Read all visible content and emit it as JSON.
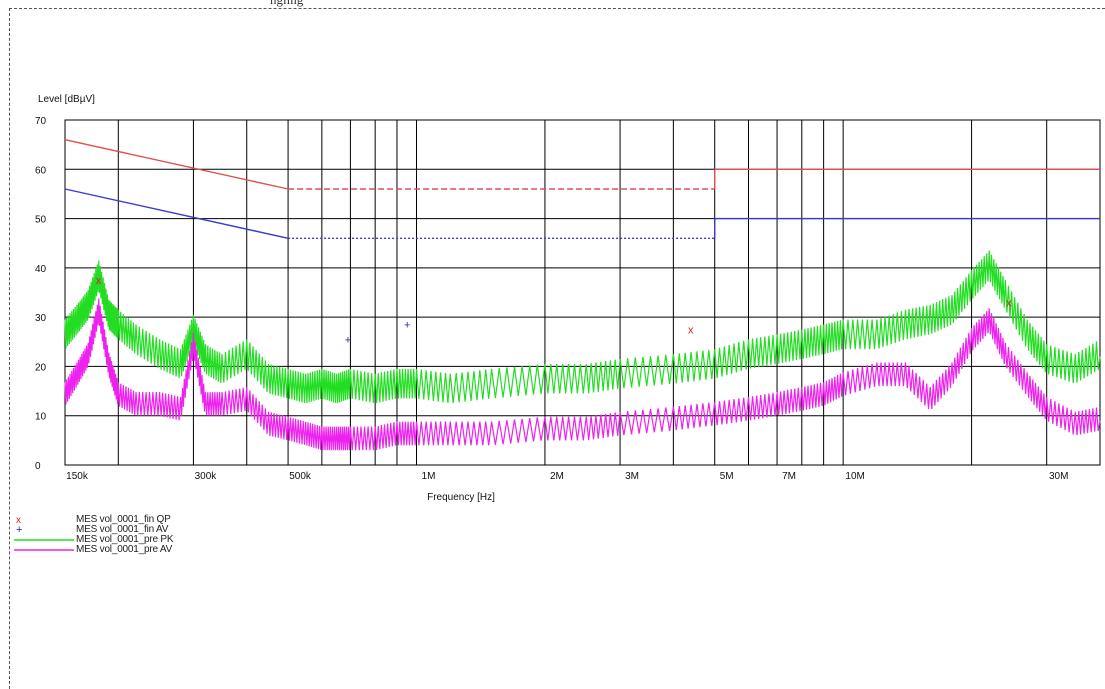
{
  "header_fragment": "ngling",
  "chart_data": {
    "type": "line",
    "title": "",
    "ylabel": "Level [dBµV]",
    "xlabel": "Frequency [Hz]",
    "x_scale": "log",
    "xlim": [
      150000,
      40000000
    ],
    "ylim": [
      0,
      70
    ],
    "grid": true,
    "y_ticks": [
      0,
      10,
      20,
      30,
      40,
      50,
      60,
      70
    ],
    "x_ticks": [
      {
        "value": 150000,
        "label": "150k"
      },
      {
        "value": 300000,
        "label": "300k"
      },
      {
        "value": 500000,
        "label": "500k"
      },
      {
        "value": 1000000,
        "label": "1M"
      },
      {
        "value": 2000000,
        "label": "2M"
      },
      {
        "value": 3000000,
        "label": "3M"
      },
      {
        "value": 5000000,
        "label": "5M"
      },
      {
        "value": 7000000,
        "label": "7M"
      },
      {
        "value": 10000000,
        "label": "10M"
      },
      {
        "value": 30000000,
        "label": "30M"
      }
    ],
    "x_minor_grid": [
      200000,
      400000,
      600000,
      700000,
      800000,
      900000,
      4000000,
      6000000,
      8000000,
      9000000,
      20000000
    ],
    "limit_lines": [
      {
        "color": "#e05050",
        "segments": [
          {
            "x": [
              150000,
              500000
            ],
            "y": [
              66,
              56
            ],
            "style": "solid"
          },
          {
            "x": [
              500000,
              5000000
            ],
            "y": [
              56,
              56
            ],
            "style": "dashed"
          },
          {
            "x": [
              5000000,
              5000000
            ],
            "y": [
              56,
              60
            ],
            "style": "solid"
          },
          {
            "x": [
              5000000,
              40000000
            ],
            "y": [
              60,
              60
            ],
            "style": "solid"
          }
        ]
      },
      {
        "color": "#3a3ad0",
        "segments": [
          {
            "x": [
              150000,
              500000
            ],
            "y": [
              56,
              46
            ],
            "style": "solid"
          },
          {
            "x": [
              500000,
              5000000
            ],
            "y": [
              46,
              46
            ],
            "style": "dotted"
          },
          {
            "x": [
              5000000,
              5000000
            ],
            "y": [
              46,
              50
            ],
            "style": "solid"
          },
          {
            "x": [
              5000000,
              40000000
            ],
            "y": [
              50,
              50
            ],
            "style": "solid"
          }
        ]
      }
    ],
    "series": [
      {
        "name": "MES  vol_0001_pre PK",
        "color": "#22dd22",
        "line": true,
        "x": [
          150000,
          160000,
          170000,
          180000,
          190000,
          200000,
          220000,
          250000,
          280000,
          300000,
          320000,
          350000,
          400000,
          450000,
          500000,
          550000,
          600000,
          650000,
          700000,
          800000,
          900000,
          1000000,
          1200000,
          1500000,
          2000000,
          2500000,
          3000000,
          4000000,
          5000000,
          6000000,
          7000000,
          8000000,
          9000000,
          10000000,
          12000000,
          14000000,
          16000000,
          18000000,
          20000000,
          22000000,
          24000000,
          27000000,
          30000000,
          35000000,
          40000000
        ],
        "y": [
          26,
          29,
          32,
          38,
          30,
          28,
          25,
          22,
          20,
          27,
          21,
          19,
          22,
          17,
          16,
          15,
          16,
          15,
          16,
          15,
          16,
          16,
          15,
          16,
          17,
          17,
          18,
          19,
          20,
          22,
          23,
          24,
          25,
          26,
          26,
          28,
          29,
          31,
          36,
          40,
          34,
          26,
          21,
          19,
          22
        ]
      },
      {
        "name": "MES  vol_0001_pre AV",
        "color": "#ee22ee",
        "line": true,
        "x": [
          150000,
          160000,
          170000,
          180000,
          190000,
          200000,
          220000,
          250000,
          280000,
          300000,
          320000,
          350000,
          400000,
          450000,
          500000,
          550000,
          600000,
          650000,
          700000,
          800000,
          900000,
          1000000,
          1200000,
          1500000,
          2000000,
          2500000,
          3000000,
          4000000,
          5000000,
          6000000,
          7000000,
          8000000,
          9000000,
          10000000,
          12000000,
          14000000,
          16000000,
          18000000,
          20000000,
          22000000,
          24000000,
          27000000,
          30000000,
          35000000,
          40000000
        ],
        "y": [
          14,
          18,
          22,
          31,
          20,
          14,
          12,
          12,
          11,
          24,
          12,
          12,
          13,
          8,
          7,
          6,
          5,
          5,
          5,
          5,
          6,
          6,
          6,
          6,
          7,
          7,
          8,
          9,
          10,
          11,
          12,
          13,
          14,
          16,
          18,
          18,
          13,
          18,
          25,
          29,
          22,
          16,
          11,
          8,
          9
        ]
      },
      {
        "name": "MES  vol_0001_fin QP",
        "color": "#e02020",
        "marker": "x",
        "x": [
          180000,
          4400000,
          24500000
        ],
        "y": [
          37.5,
          27.5,
          33
        ]
      },
      {
        "name": "MES  vol_0001_fin AV",
        "color": "#2020c0",
        "marker": "+",
        "x": [
          690000,
          950000
        ],
        "y": [
          25.5,
          28.5
        ]
      }
    ]
  }
}
